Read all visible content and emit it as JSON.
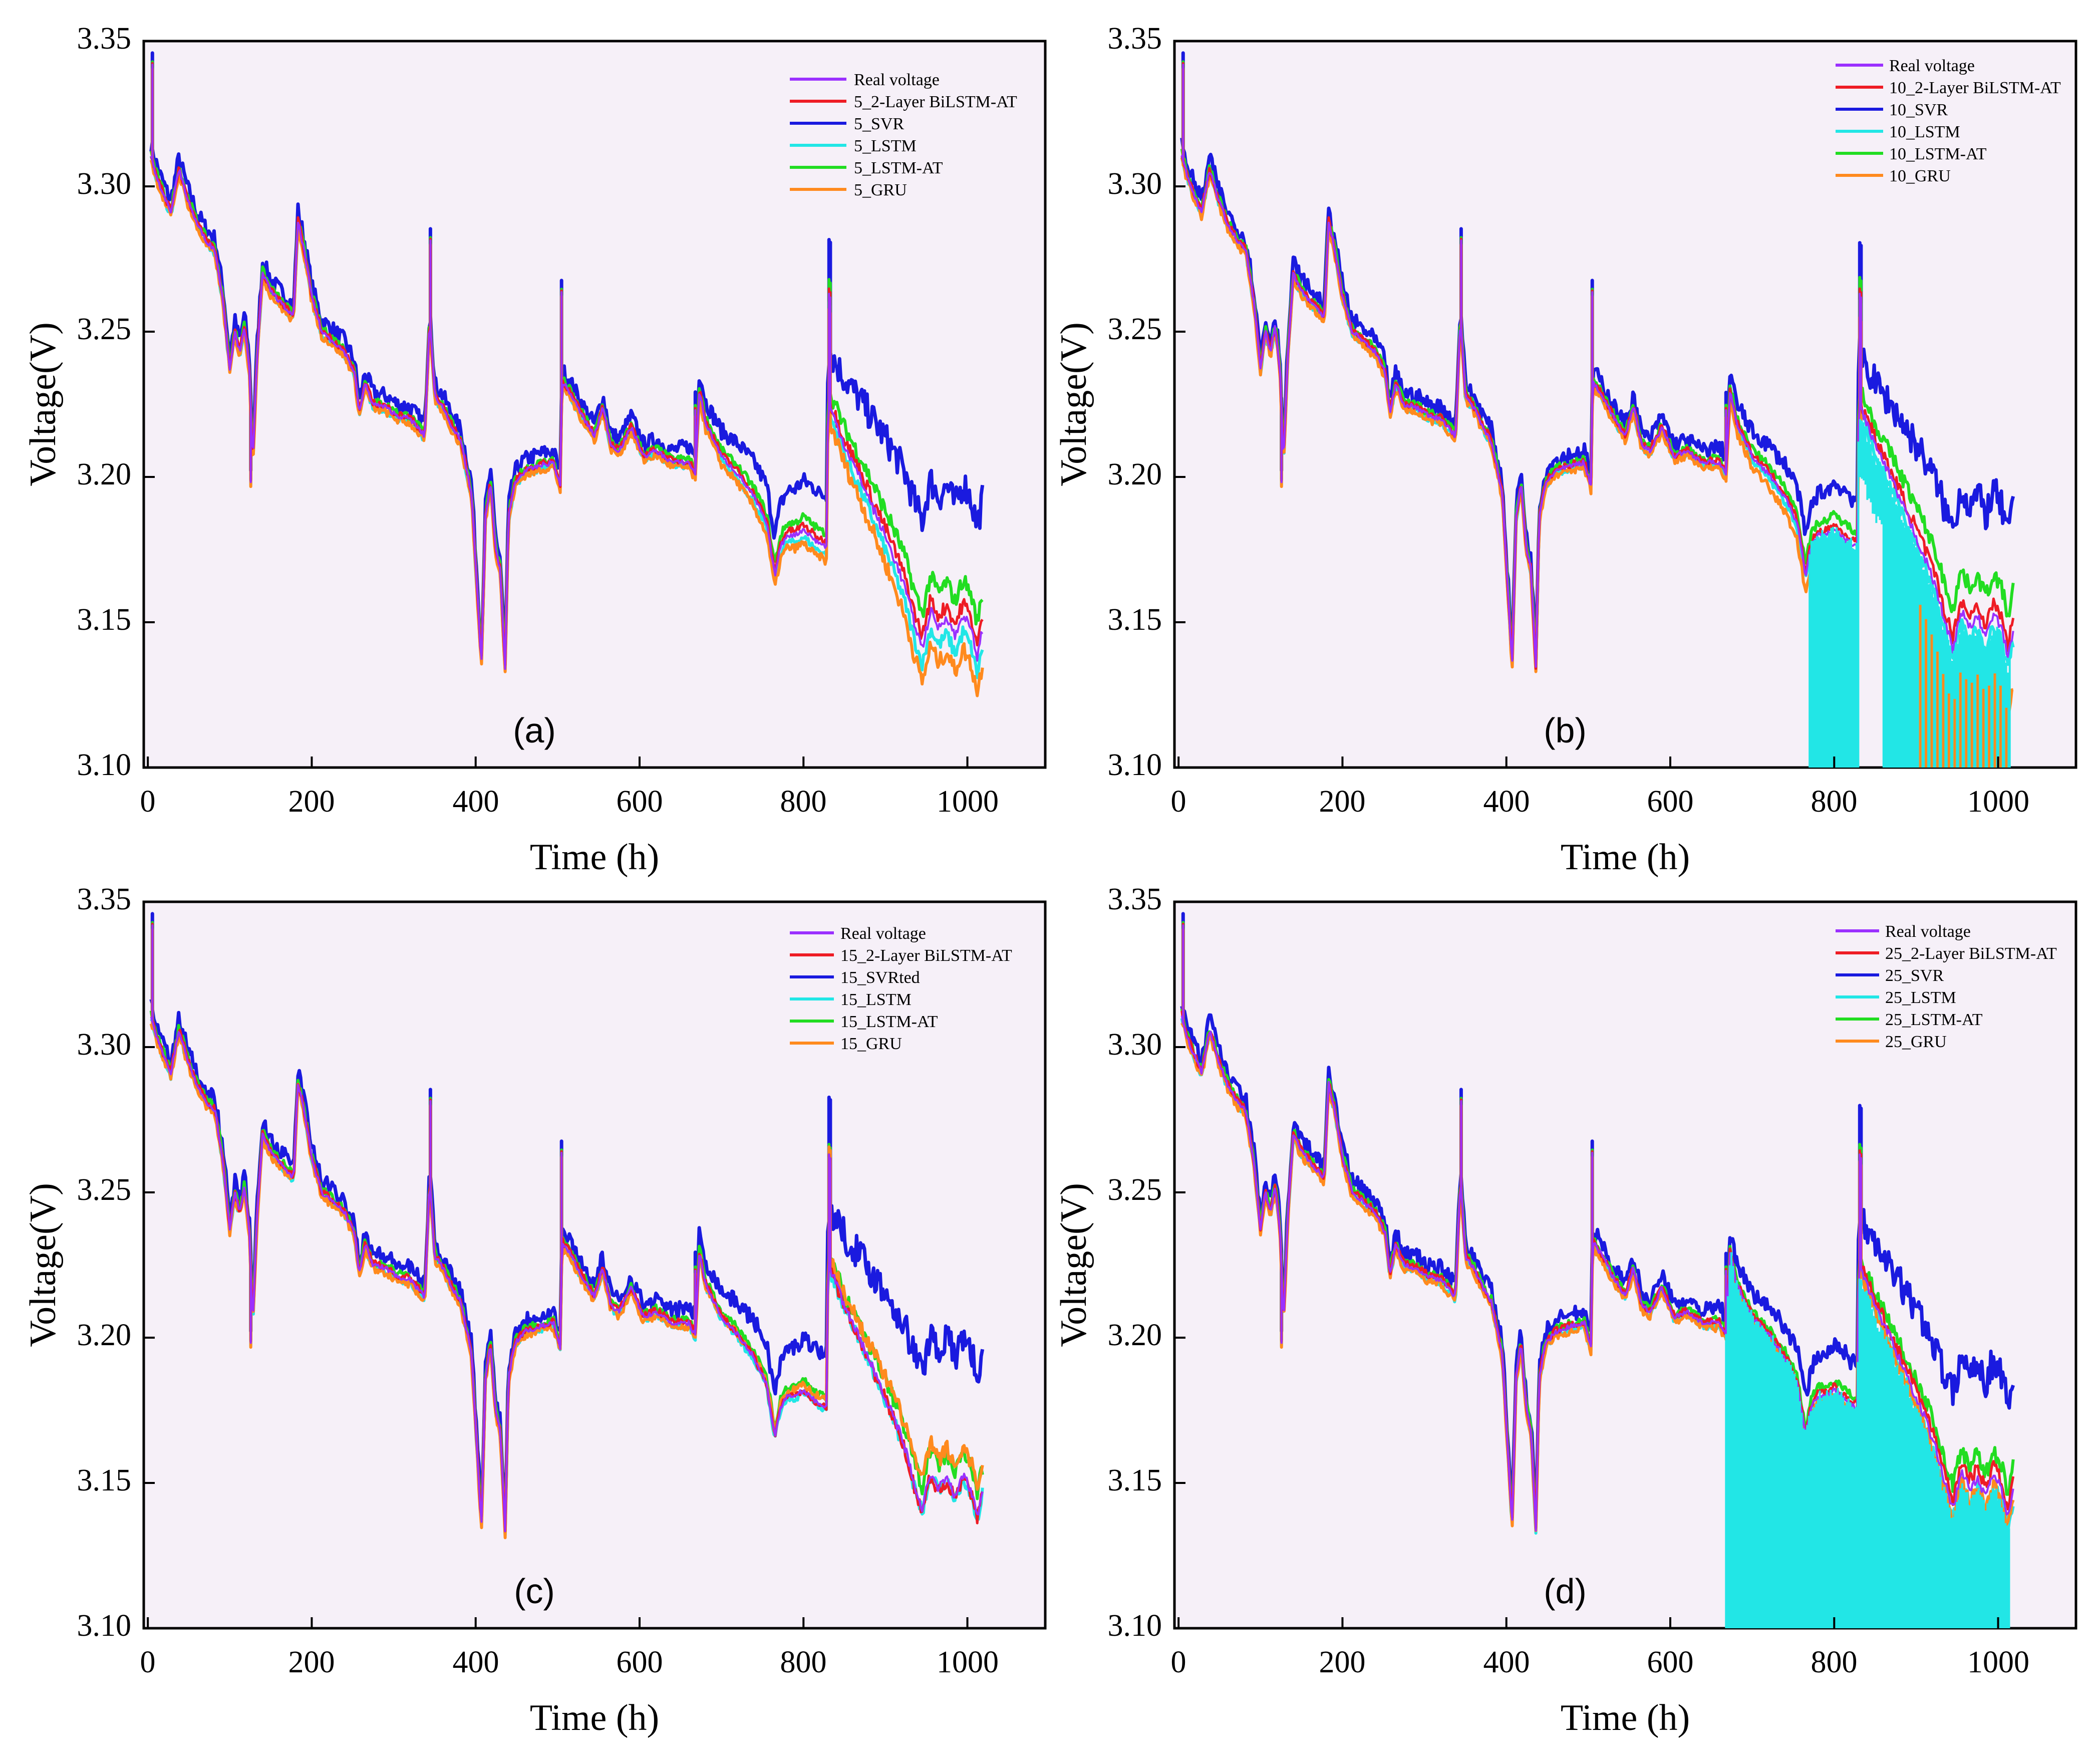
{
  "figure": {
    "xlabel": "Time (h)",
    "ylabel": "Voltage(V)",
    "xticks": [
      0,
      200,
      400,
      600,
      800,
      1000
    ],
    "yticks": [
      "3.10",
      "3.15",
      "3.20",
      "3.25",
      "3.30",
      "3.35"
    ]
  },
  "colors": {
    "background": "#f6f0f8",
    "real": "#9b30ff",
    "bilstm": "#ee1c25",
    "svr": "#1a1adf",
    "lstm": "#22e6e6",
    "lstmat": "#22dd22",
    "gru": "#ff8a1e"
  },
  "chart_data": [
    {
      "type": "line",
      "panel_label": "(a)",
      "xlabel": "Time (h)",
      "ylabel": "Voltage(V)",
      "xlim": [
        -5,
        1095
      ],
      "ylim": [
        3.1,
        3.35
      ],
      "grid": false,
      "legend": "top-right",
      "series": [
        {
          "name": "Real voltage",
          "key": "real"
        },
        {
          "name": "5_2-Layer BiLSTM-AT",
          "key": "bilstm"
        },
        {
          "name": "5_SVR",
          "key": "svr"
        },
        {
          "name": "5_LSTM",
          "key": "lstm"
        },
        {
          "name": "5_LSTM-AT",
          "key": "lstmat"
        },
        {
          "name": "5_GRU",
          "key": "gru"
        }
      ]
    },
    {
      "type": "line",
      "panel_label": "(b)",
      "xlabel": "Time (h)",
      "ylabel": "Voltage(V)",
      "xlim": [
        -5,
        1095
      ],
      "ylim": [
        3.1,
        3.35
      ],
      "grid": false,
      "legend": "top-right",
      "series": [
        {
          "name": "Real voltage",
          "key": "real"
        },
        {
          "name": "10_2-Layer BiLSTM-AT",
          "key": "bilstm"
        },
        {
          "name": "10_SVR",
          "key": "svr"
        },
        {
          "name": "10_LSTM",
          "key": "lstm"
        },
        {
          "name": "10_LSTM-AT",
          "key": "lstmat"
        },
        {
          "name": "10_GRU",
          "key": "gru"
        }
      ]
    },
    {
      "type": "line",
      "panel_label": "(c)",
      "xlabel": "Time (h)",
      "ylabel": "Voltage(V)",
      "xlim": [
        -5,
        1095
      ],
      "ylim": [
        3.1,
        3.35
      ],
      "grid": false,
      "legend": "top-right",
      "series": [
        {
          "name": "Real voltage",
          "key": "real"
        },
        {
          "name": "15_2-Layer BiLSTM-AT",
          "key": "bilstm"
        },
        {
          "name": "15_SVRted",
          "key": "svr"
        },
        {
          "name": "15_LSTM",
          "key": "lstm"
        },
        {
          "name": "15_LSTM-AT",
          "key": "lstmat"
        },
        {
          "name": "15_GRU",
          "key": "gru"
        }
      ]
    },
    {
      "type": "line",
      "panel_label": "(d)",
      "xlabel": "Time (h)",
      "ylabel": "Voltage(V)",
      "xlim": [
        -5,
        1095
      ],
      "ylim": [
        3.1,
        3.35
      ],
      "grid": false,
      "legend": "top-right",
      "series": [
        {
          "name": "Real voltage",
          "key": "real"
        },
        {
          "name": "25_2-Layer BiLSTM-AT",
          "key": "bilstm"
        },
        {
          "name": "25_SVR",
          "key": "svr"
        },
        {
          "name": "25_LSTM",
          "key": "lstm"
        },
        {
          "name": "25_LSTM-AT",
          "key": "lstmat"
        },
        {
          "name": "25_GRU",
          "key": "gru"
        }
      ]
    }
  ],
  "base_curve": {
    "x": [
      3,
      8,
      15,
      28,
      38,
      48,
      60,
      72,
      82,
      92,
      100,
      106,
      112,
      118,
      124,
      128,
      133,
      140,
      150,
      165,
      178,
      183,
      190,
      200,
      212,
      225,
      240,
      252,
      258,
      265,
      275,
      290,
      305,
      320,
      338,
      344,
      350,
      360,
      370,
      382,
      395,
      402,
      407,
      412,
      418,
      424,
      430,
      436,
      440,
      448,
      460,
      480,
      495,
      504,
      505,
      515,
      530,
      545,
      555,
      565,
      575,
      590,
      605,
      620,
      640,
      660,
      668,
      673,
      680,
      690,
      700,
      720,
      740,
      755,
      765,
      772,
      780,
      790,
      800,
      815,
      828,
      830,
      835,
      850,
      870,
      890,
      905,
      915,
      925,
      935,
      945,
      955,
      965,
      975,
      985,
      995,
      1005,
      1012,
      1020
    ],
    "y": [
      3.312,
      3.306,
      3.3,
      3.291,
      3.306,
      3.296,
      3.287,
      3.281,
      3.278,
      3.26,
      3.237,
      3.25,
      3.243,
      3.252,
      3.236,
      3.204,
      3.24,
      3.27,
      3.264,
      3.259,
      3.255,
      3.288,
      3.279,
      3.262,
      3.25,
      3.247,
      3.243,
      3.236,
      3.222,
      3.232,
      3.225,
      3.224,
      3.221,
      3.22,
      3.214,
      3.255,
      3.228,
      3.224,
      3.218,
      3.212,
      3.194,
      3.16,
      3.135,
      3.186,
      3.198,
      3.176,
      3.168,
      3.134,
      3.186,
      3.198,
      3.202,
      3.204,
      3.205,
      3.196,
      3.233,
      3.229,
      3.221,
      3.214,
      3.224,
      3.211,
      3.209,
      3.217,
      3.207,
      3.209,
      3.205,
      3.205,
      3.201,
      3.23,
      3.219,
      3.213,
      3.207,
      3.201,
      3.193,
      3.184,
      3.166,
      3.176,
      3.18,
      3.18,
      3.182,
      3.178,
      3.176,
      3.226,
      3.222,
      3.211,
      3.199,
      3.186,
      3.176,
      3.169,
      3.161,
      3.15,
      3.141,
      3.154,
      3.148,
      3.152,
      3.145,
      3.153,
      3.147,
      3.138,
      3.15
    ]
  }
}
